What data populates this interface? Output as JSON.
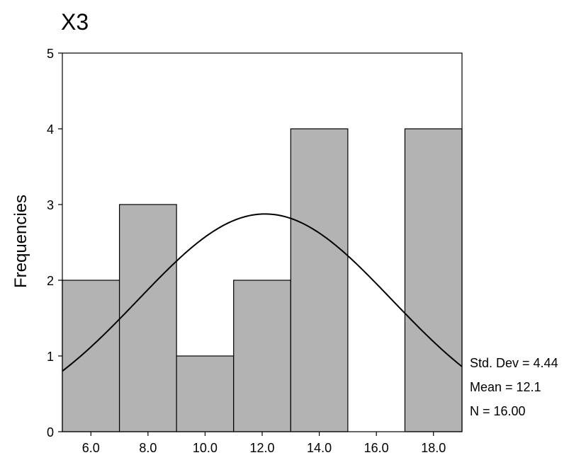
{
  "chart_data": {
    "type": "bar",
    "title": "X3",
    "xlabel": "",
    "ylabel": "Frequencies",
    "bin_width": 2,
    "bin_centers": [
      6,
      8,
      10,
      12,
      14,
      16,
      18
    ],
    "values": [
      2,
      3,
      1,
      2,
      4,
      0,
      4
    ],
    "x_tick_labels": [
      "6.0",
      "8.0",
      "10.0",
      "12.0",
      "14.0",
      "16.0",
      "18.0"
    ],
    "y_tick_labels": [
      "0",
      "1",
      "2",
      "3",
      "4",
      "5"
    ],
    "xlim": [
      5,
      19
    ],
    "ylim": [
      0,
      5
    ],
    "normal_curve": {
      "mean": 12.1,
      "std_dev": 4.44,
      "n": 16
    },
    "stats": [
      "Std. Dev = 4.44",
      "Mean = 12.1",
      "N = 16.00"
    ],
    "bar_color": "#b3b3b3",
    "grid": false,
    "legend": "none"
  }
}
